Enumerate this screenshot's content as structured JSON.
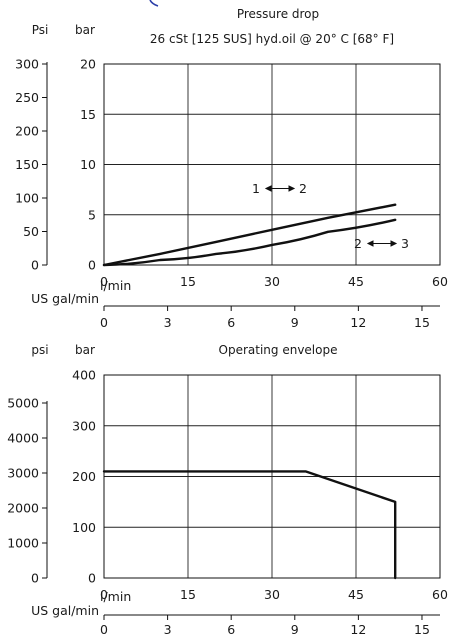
{
  "chart_data": [
    {
      "type": "line",
      "title": "Pressure drop",
      "subtitle": "26 cSt [125 SUS] hyd.oil @ 20° C [68° F]",
      "left_unit": "Psi",
      "right_unit": "bar",
      "xlabel": "l/min",
      "x2label": "US gal/min",
      "xlim": [
        0,
        60
      ],
      "ylim_bar": [
        0,
        20
      ],
      "ylim_psi": [
        0,
        300
      ],
      "x_ticks": [
        "0",
        "15",
        "30",
        "45",
        "60"
      ],
      "x_tick_values": [
        0,
        15,
        30,
        45,
        60
      ],
      "x2_ticks": [
        "0",
        "3",
        "6",
        "9",
        "12",
        "15"
      ],
      "x2_tick_values": [
        0,
        3,
        6,
        9,
        12,
        15
      ],
      "y_ticks_bar": [
        "0",
        "5",
        "10",
        "15",
        "20"
      ],
      "y_tick_values_bar": [
        0,
        5,
        10,
        15,
        20
      ],
      "y_ticks_psi": [
        "0",
        "50",
        "100",
        "150",
        "200",
        "250",
        "300"
      ],
      "y_tick_values_psi": [
        0,
        50,
        100,
        150,
        200,
        250,
        300
      ],
      "grid": true,
      "series": [
        {
          "annotation": [
            "1",
            "2"
          ],
          "x": [
            0,
            10,
            20,
            30,
            40,
            52
          ],
          "y": [
            0,
            1.1,
            2.3,
            3.5,
            4.7,
            6.0
          ]
        },
        {
          "annotation": [
            "2",
            "3"
          ],
          "x": [
            0,
            10,
            20,
            30,
            40,
            52
          ],
          "y": [
            0,
            0.5,
            1.1,
            2.0,
            3.3,
            4.5
          ]
        }
      ]
    },
    {
      "type": "line",
      "title": "Operating envelope",
      "left_unit": "psi",
      "right_unit": "bar",
      "xlabel": "l/min",
      "x2label": "US gal/min",
      "xlim": [
        0,
        60
      ],
      "ylim_bar": [
        0,
        400
      ],
      "ylim_psi": [
        0,
        5800
      ],
      "x_ticks": [
        "0",
        "15",
        "30",
        "45",
        "60"
      ],
      "x_tick_values": [
        0,
        15,
        30,
        45,
        60
      ],
      "x2_ticks": [
        "0",
        "3",
        "6",
        "9",
        "12",
        "15"
      ],
      "x2_tick_values": [
        0,
        3,
        6,
        9,
        12,
        15
      ],
      "y_ticks_bar": [
        "0",
        "100",
        "200",
        "300",
        "400"
      ],
      "y_tick_values_bar": [
        0,
        100,
        200,
        300,
        400
      ],
      "y_ticks_psi": [
        "0",
        "1000",
        "2000",
        "3000",
        "4000",
        "5000"
      ],
      "y_tick_values_psi": [
        0,
        1000,
        2000,
        3000,
        4000,
        5000
      ],
      "grid": true,
      "series": [
        {
          "x": [
            0,
            36,
            52,
            52
          ],
          "y": [
            210,
            210,
            150,
            0
          ]
        }
      ]
    }
  ]
}
